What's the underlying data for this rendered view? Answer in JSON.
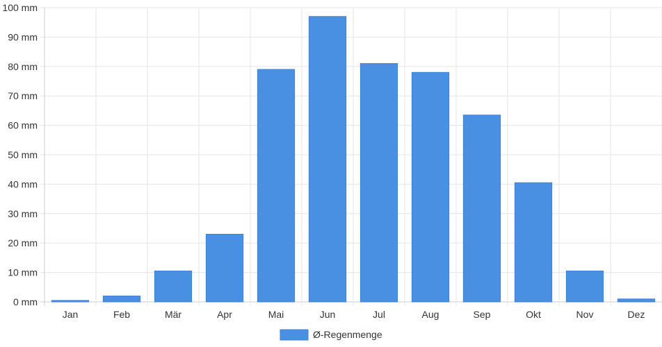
{
  "chart_data": {
    "type": "bar",
    "categories": [
      "Jan",
      "Feb",
      "Mär",
      "Apr",
      "Mai",
      "Jun",
      "Jul",
      "Aug",
      "Sep",
      "Okt",
      "Nov",
      "Dez"
    ],
    "series": [
      {
        "name": "Ø-Regenmenge",
        "color": "#4a90e2",
        "values": [
          0.5,
          2,
          10.5,
          23,
          79,
          97,
          81,
          78,
          63.5,
          40.5,
          10.5,
          1
        ]
      }
    ],
    "ylim": [
      0,
      100
    ],
    "yticks": [
      0,
      10,
      20,
      30,
      40,
      50,
      60,
      70,
      80,
      90,
      100
    ],
    "ytick_labels": [
      "0 mm",
      "10 mm",
      "20 mm",
      "30 mm",
      "40 mm",
      "50 mm",
      "60 mm",
      "70 mm",
      "80 mm",
      "90 mm",
      "100 mm"
    ],
    "grid": true,
    "legend": "bottom-center"
  }
}
